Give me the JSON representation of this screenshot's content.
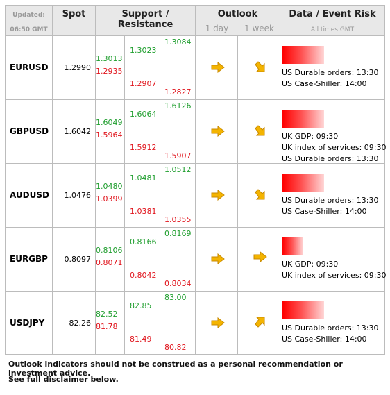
{
  "header": {
    "updated_label": "Updated:",
    "updated_time": "06:50 GMT",
    "spot": "Spot",
    "support_resistance": "Support / Resistance",
    "outlook": "Outlook",
    "outlook_1day": "1 day",
    "outlook_1week": "1 week",
    "event_risk": "Data / Event Risk",
    "all_times": "All times GMT"
  },
  "colors": {
    "support_green": "#1f9e2e",
    "resistance_red": "#e0141c",
    "arrow": "#f4b400"
  },
  "rows": [
    {
      "pair": "EURUSD",
      "spot": "1.2990",
      "s1": "1.3013",
      "s1r": "1.2935",
      "s2": "1.3023",
      "s2r": "1.2907",
      "s3": "1.3084",
      "s3r": "1.2827",
      "day_icon": "arrow-right-icon",
      "week_icon": "arrow-down-right-icon",
      "risk_level": 0.6,
      "events": [
        "US Durable orders: 13:30",
        "US Case-Shiller: 14:00"
      ]
    },
    {
      "pair": "GBPUSD",
      "spot": "1.6042",
      "s1": "1.6049",
      "s1r": "1.5964",
      "s2": "1.6064",
      "s2r": "1.5912",
      "s3": "1.6126",
      "s3r": "1.5907",
      "day_icon": "arrow-right-icon",
      "week_icon": "arrow-down-right-icon",
      "risk_level": 0.6,
      "events": [
        "UK GDP: 09:30",
        "UK index of services: 09:30",
        "US Durable orders: 13:30"
      ]
    },
    {
      "pair": "AUDUSD",
      "spot": "1.0476",
      "s1": "1.0480",
      "s1r": "1.0399",
      "s2": "1.0481",
      "s2r": "1.0381",
      "s3": "1.0512",
      "s3r": "1.0355",
      "day_icon": "arrow-right-icon",
      "week_icon": "arrow-down-right-icon",
      "risk_level": 0.6,
      "events": [
        "US Durable orders: 13:30",
        "US Case-Shiller: 14:00"
      ]
    },
    {
      "pair": "EURGBP",
      "spot": "0.8097",
      "s1": "0.8106",
      "s1r": "0.8071",
      "s2": "0.8166",
      "s2r": "0.8042",
      "s3": "0.8169",
      "s3r": "0.8034",
      "day_icon": "arrow-right-icon",
      "week_icon": "arrow-right-icon",
      "risk_level": 0.3,
      "events": [
        "UK GDP: 09:30",
        "UK index of services: 09:30"
      ]
    },
    {
      "pair": "USDJPY",
      "spot": "82.26",
      "s1": "82.52",
      "s1r": "81.78",
      "s2": "82.85",
      "s2r": "81.49",
      "s3": "83.00",
      "s3r": "80.82",
      "day_icon": "arrow-right-icon",
      "week_icon": "arrow-up-right-icon",
      "risk_level": 0.6,
      "events": [
        "US Durable orders: 13:30",
        "US Case-Shiller: 14:00"
      ]
    }
  ],
  "footer": {
    "disclaimer": "Outlook indicators should not be construed as a personal recommendation or investment advice.",
    "see_full": "See full disclaimer below."
  }
}
